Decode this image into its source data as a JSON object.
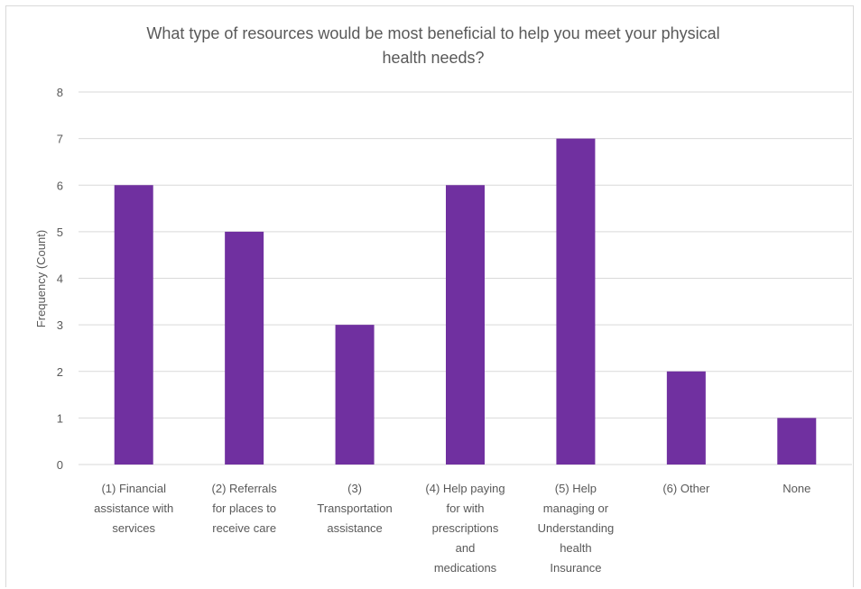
{
  "chart_data": {
    "type": "bar",
    "title": "What type of resources would be most beneficial to help you meet your physical health needs?",
    "xlabel": "",
    "ylabel": "Frequency (Count)",
    "ylim": [
      0,
      8
    ],
    "yticks": [
      "0",
      "1",
      "2",
      "3",
      "4",
      "5",
      "6",
      "7",
      "8"
    ],
    "grid": true,
    "legend": "none",
    "bar_color": "#7030a0",
    "categories": [
      [
        "(1) Financial",
        "assistance with",
        "services"
      ],
      [
        "(2) Referrals",
        "for places to",
        "receive care"
      ],
      [
        "(3)",
        "Transportation",
        "assistance"
      ],
      [
        "(4) Help paying",
        "for with",
        "prescriptions",
        "and",
        "medications"
      ],
      [
        "(5) Help",
        "managing or",
        "Understanding",
        "health",
        "Insurance"
      ],
      [
        "(6) Other"
      ],
      [
        "None"
      ]
    ],
    "values": [
      6,
      5,
      3,
      6,
      7,
      2,
      1
    ]
  }
}
